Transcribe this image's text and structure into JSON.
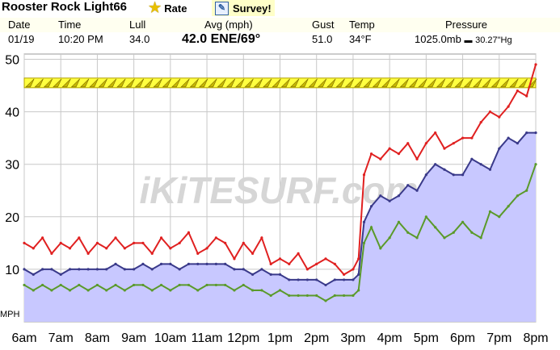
{
  "header": {
    "station": "Rooster Rock Light66",
    "rate_label": "Rate",
    "survey_label": "Survey!",
    "icons": {
      "rate": "star-icon",
      "survey": "edit-icon"
    }
  },
  "conditions": {
    "labels": {
      "date": "Date",
      "time": "Time",
      "lull": "Lull",
      "avg": "Avg (mph)",
      "gust": "Gust",
      "temp": "Temp",
      "pressure": "Pressure"
    },
    "values": {
      "date": "01/19",
      "time": "10:20 PM",
      "lull": "34.0",
      "avg": "42.0 ENE/69°",
      "gust": "51.0",
      "temp": "34°F",
      "pressure_mb": "1025.0mb",
      "pressure_sep": "▬",
      "pressure_hg": "30.27\"Hg"
    }
  },
  "chart_data": {
    "type": "line",
    "ylabel": "MPH",
    "ylim": [
      0,
      51
    ],
    "yticks": [
      10,
      20,
      30,
      40,
      50
    ],
    "x_domain": [
      6,
      20
    ],
    "x_tick_values": [
      6,
      7,
      8,
      9,
      10,
      11,
      12,
      13,
      14,
      15,
      16,
      17,
      18,
      19,
      20
    ],
    "x_ticks": [
      "6am",
      "7am",
      "8am",
      "9am",
      "10am",
      "11am",
      "12pm",
      "1pm",
      "2pm",
      "3pm",
      "4pm",
      "5pm",
      "6pm",
      "7pm",
      "8pm"
    ],
    "grid": true,
    "watermark": "iKiTESURF.com",
    "colors": {
      "gust": "#e02020",
      "avg": "#3a3a8a",
      "lull": "#5a9a2a",
      "area": "#c8c8ff",
      "band": "#ffff40"
    },
    "direction_band": {
      "y": 45.5,
      "direction": "ENE"
    },
    "series": [
      {
        "key": "gust",
        "x": [
          6.0,
          6.25,
          6.5,
          6.75,
          7.0,
          7.25,
          7.5,
          7.75,
          8.0,
          8.25,
          8.5,
          8.75,
          9.0,
          9.25,
          9.5,
          9.75,
          10.0,
          10.25,
          10.5,
          10.75,
          11.0,
          11.25,
          11.5,
          11.75,
          12.0,
          12.25,
          12.5,
          12.75,
          13.0,
          13.25,
          13.5,
          13.75,
          14.0,
          14.25,
          14.5,
          14.75,
          15.0,
          15.15,
          15.3,
          15.5,
          15.75,
          16.0,
          16.25,
          16.5,
          16.75,
          17.0,
          17.25,
          17.5,
          17.75,
          18.0,
          18.25,
          18.5,
          18.75,
          19.0,
          19.25,
          19.5,
          19.75,
          20.0
        ],
        "values": [
          15,
          14,
          16,
          13,
          15,
          14,
          16,
          13,
          15,
          14,
          16,
          14,
          15,
          15,
          13,
          16,
          14,
          15,
          17,
          13,
          14,
          16,
          15,
          12,
          15,
          13,
          16,
          11,
          12,
          11,
          13,
          10,
          11,
          12,
          11,
          9,
          10,
          12,
          28,
          32,
          31,
          33,
          32,
          34,
          31,
          34,
          36,
          33,
          34,
          35,
          35,
          38,
          40,
          39,
          41,
          44,
          43,
          49
        ]
      },
      {
        "key": "avg",
        "x": [
          6.0,
          6.25,
          6.5,
          6.75,
          7.0,
          7.25,
          7.5,
          7.75,
          8.0,
          8.25,
          8.5,
          8.75,
          9.0,
          9.25,
          9.5,
          9.75,
          10.0,
          10.25,
          10.5,
          10.75,
          11.0,
          11.25,
          11.5,
          11.75,
          12.0,
          12.25,
          12.5,
          12.75,
          13.0,
          13.25,
          13.5,
          13.75,
          14.0,
          14.25,
          14.5,
          14.75,
          15.0,
          15.15,
          15.3,
          15.5,
          15.75,
          16.0,
          16.25,
          16.5,
          16.75,
          17.0,
          17.25,
          17.5,
          17.75,
          18.0,
          18.25,
          18.5,
          18.75,
          19.0,
          19.25,
          19.5,
          19.75,
          20.0
        ],
        "values": [
          10,
          9,
          10,
          10,
          9,
          10,
          10,
          10,
          10,
          10,
          11,
          10,
          10,
          11,
          10,
          11,
          11,
          10,
          11,
          11,
          11,
          11,
          11,
          10,
          10,
          9,
          10,
          9,
          9,
          8,
          8,
          8,
          8,
          7,
          8,
          8,
          8,
          9,
          19,
          22,
          24,
          23,
          24,
          26,
          25,
          28,
          30,
          29,
          28,
          28,
          31,
          30,
          29,
          33,
          35,
          34,
          36,
          36
        ]
      },
      {
        "key": "lull",
        "x": [
          6.0,
          6.25,
          6.5,
          6.75,
          7.0,
          7.25,
          7.5,
          7.75,
          8.0,
          8.25,
          8.5,
          8.75,
          9.0,
          9.25,
          9.5,
          9.75,
          10.0,
          10.25,
          10.5,
          10.75,
          11.0,
          11.25,
          11.5,
          11.75,
          12.0,
          12.25,
          12.5,
          12.75,
          13.0,
          13.25,
          13.5,
          13.75,
          14.0,
          14.25,
          14.5,
          14.75,
          15.0,
          15.15,
          15.3,
          15.5,
          15.75,
          16.0,
          16.25,
          16.5,
          16.75,
          17.0,
          17.25,
          17.5,
          17.75,
          18.0,
          18.25,
          18.5,
          18.75,
          19.0,
          19.25,
          19.5,
          19.75,
          20.0
        ],
        "values": [
          7,
          6,
          7,
          6,
          7,
          6,
          7,
          6,
          7,
          6,
          7,
          6,
          7,
          7,
          6,
          7,
          6,
          7,
          7,
          6,
          7,
          7,
          7,
          6,
          7,
          6,
          6,
          5,
          6,
          5,
          5,
          5,
          5,
          4,
          5,
          5,
          5,
          6,
          15,
          18,
          14,
          16,
          19,
          17,
          16,
          20,
          18,
          16,
          17,
          19,
          17,
          16,
          21,
          20,
          22,
          24,
          25,
          30
        ]
      }
    ]
  }
}
